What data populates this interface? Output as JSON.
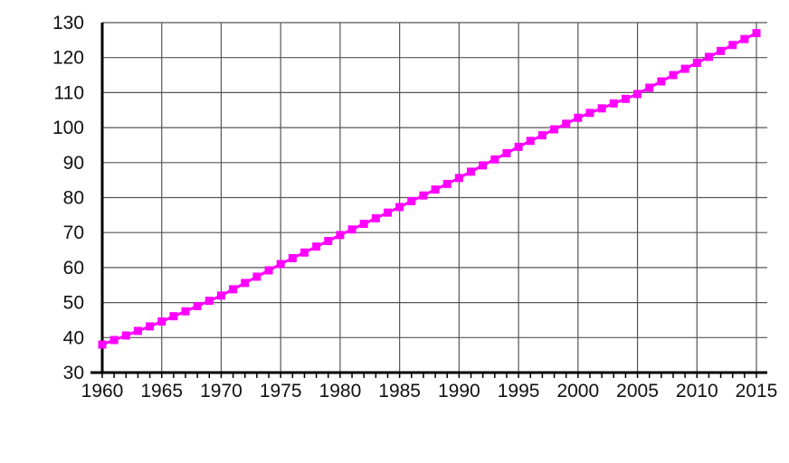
{
  "chart_data": {
    "type": "line",
    "title": "",
    "xlabel": "",
    "ylabel": "",
    "xlim": [
      1960,
      2015
    ],
    "ylim": [
      30,
      130
    ],
    "grid": true,
    "legend": "none",
    "x_ticks": [
      "1960",
      "1965",
      "1970",
      "1975",
      "1980",
      "1985",
      "1990",
      "1995",
      "2000",
      "2005",
      "2010",
      "2015"
    ],
    "y_ticks": [
      "30",
      "40",
      "50",
      "60",
      "70",
      "80",
      "90",
      "100",
      "110",
      "120",
      "130"
    ],
    "series_color": "#ff00ff",
    "marker": "square",
    "x": [
      1960,
      1961,
      1962,
      1963,
      1964,
      1965,
      1966,
      1967,
      1968,
      1969,
      1970,
      1971,
      1972,
      1973,
      1974,
      1975,
      1976,
      1977,
      1978,
      1979,
      1980,
      1981,
      1982,
      1983,
      1984,
      1985,
      1986,
      1987,
      1988,
      1989,
      1990,
      1991,
      1992,
      1993,
      1994,
      1995,
      1996,
      1997,
      1998,
      1999,
      2000,
      2001,
      2002,
      2003,
      2004,
      2005,
      2006,
      2007,
      2008,
      2009,
      2010,
      2011,
      2012,
      2013,
      2014,
      2015
    ],
    "values": [
      38.0,
      39.3,
      40.6,
      41.9,
      43.2,
      44.6,
      46.1,
      47.5,
      49.0,
      50.5,
      52.0,
      53.8,
      55.6,
      57.4,
      59.2,
      61.0,
      62.7,
      64.3,
      66.0,
      67.6,
      69.3,
      70.9,
      72.5,
      74.1,
      75.7,
      77.3,
      79.0,
      80.6,
      82.3,
      83.9,
      85.6,
      87.4,
      89.2,
      90.9,
      92.7,
      94.5,
      96.2,
      97.8,
      99.5,
      101.1,
      102.8,
      104.2,
      105.5,
      106.9,
      108.2,
      109.6,
      111.4,
      113.2,
      115.0,
      116.8,
      118.5,
      120.2,
      121.9,
      123.6,
      125.3,
      127.0
    ]
  }
}
